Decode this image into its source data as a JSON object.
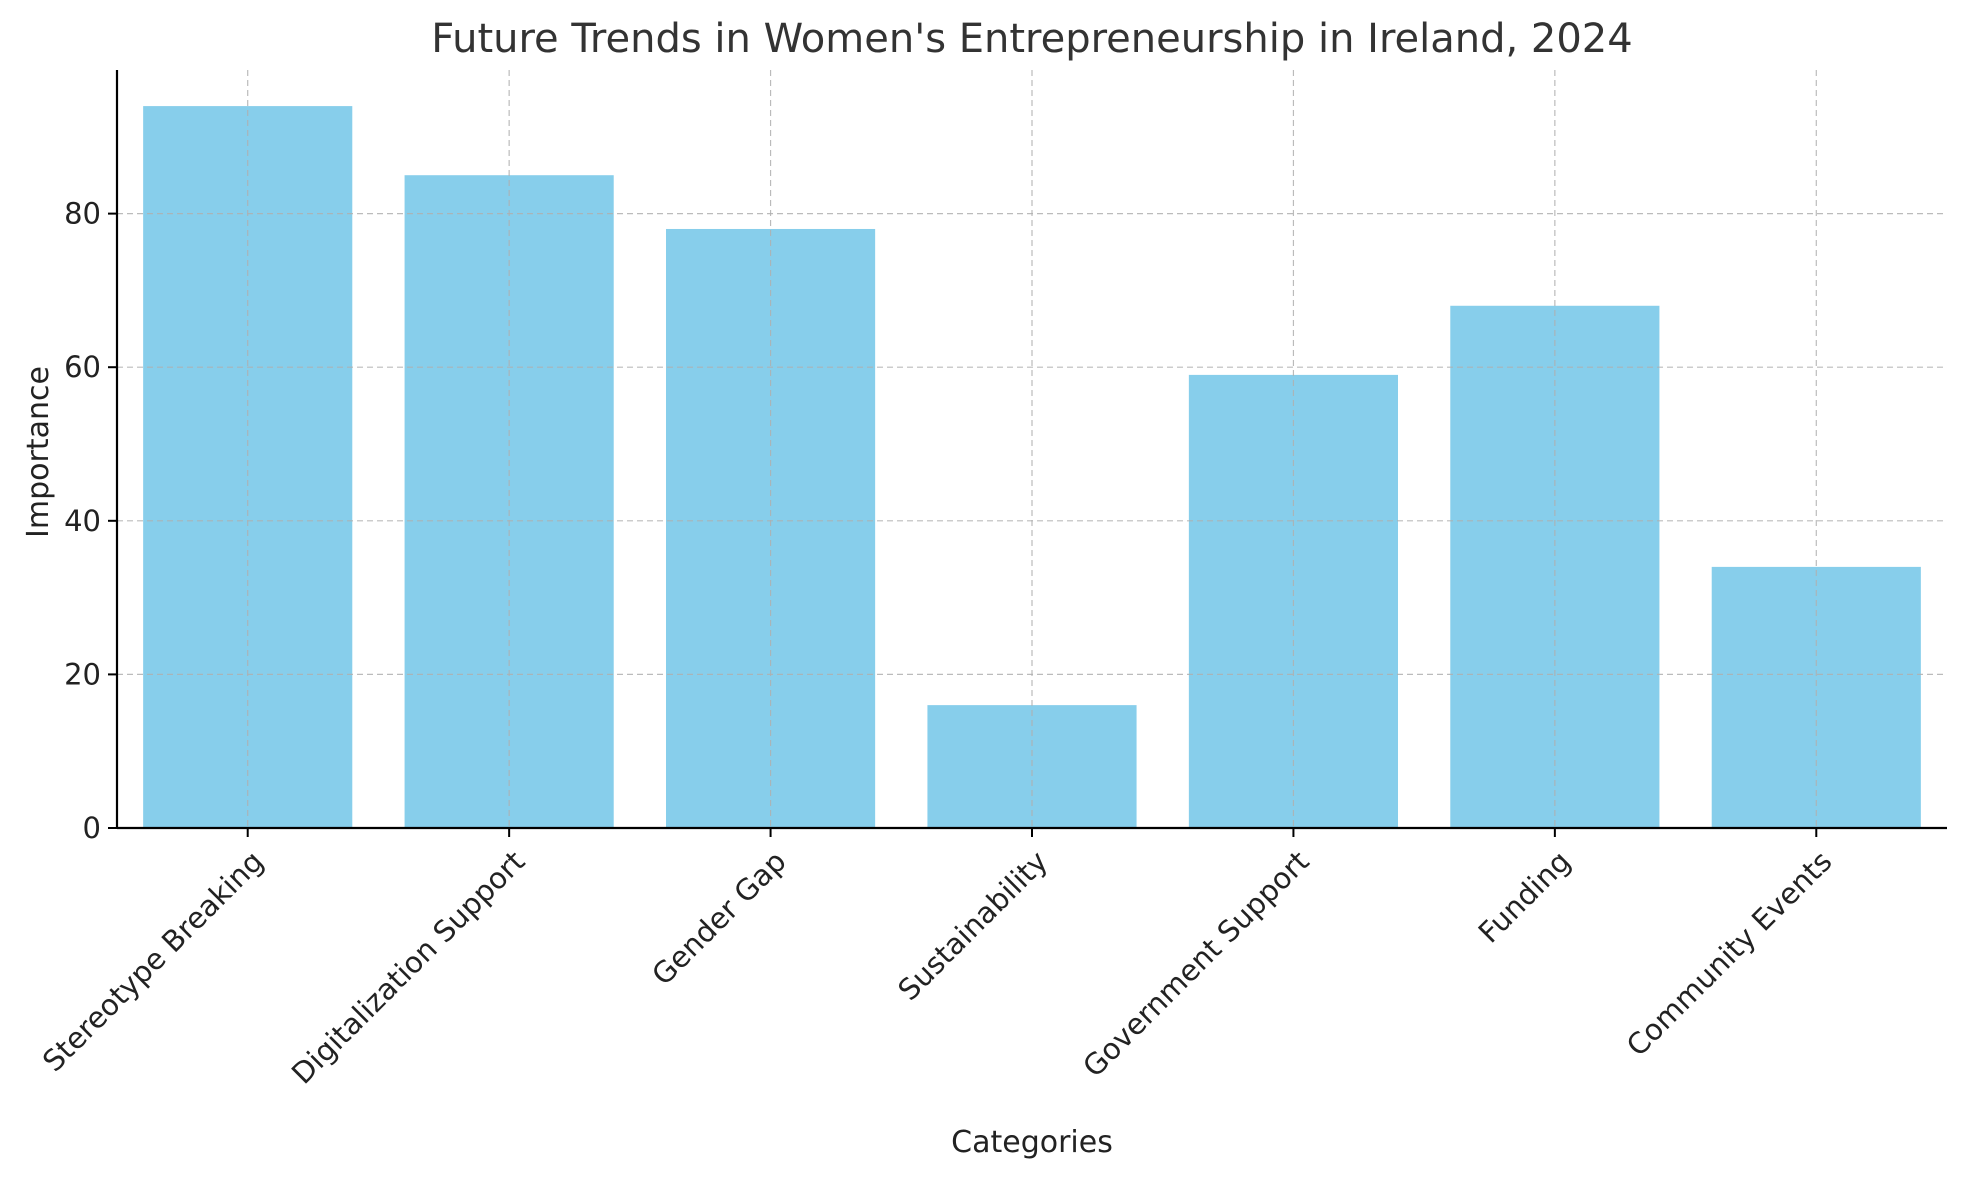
{
  "chart_data": {
    "type": "bar",
    "title": "Future Trends in Women's Entrepreneurship in Ireland, 2024",
    "xlabel": "Categories",
    "ylabel": "Importance",
    "categories": [
      "Stereotype Breaking",
      "Digitalization Support",
      "Gender Gap",
      "Sustainability",
      "Government Support",
      "Funding",
      "Community Events"
    ],
    "values": [
      94,
      85,
      78,
      16,
      59,
      68,
      34
    ],
    "ylim": [
      0,
      98.7
    ],
    "yticks": [
      0,
      20,
      40,
      60,
      80
    ],
    "grid": true,
    "bar_color": "#87CEEB",
    "legend": "none"
  }
}
